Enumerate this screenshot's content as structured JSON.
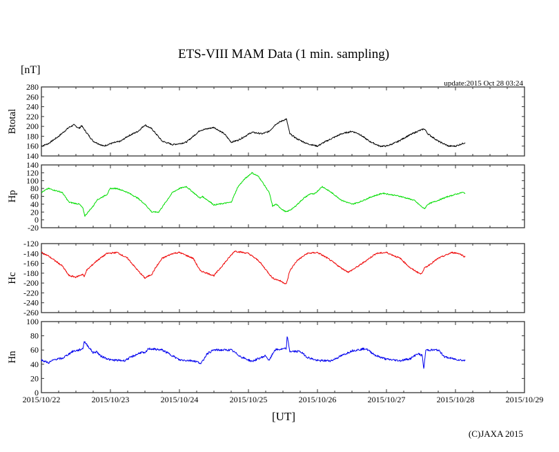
{
  "chart_data": {
    "type": "line",
    "title": "ETS-VIII MAM Data (1 min. sampling)",
    "unit_label": "[nT]",
    "update_text": "update:2015 Oct 28 03:24",
    "xlabel": "[UT]",
    "copyright": "(C)JAXA 2015",
    "x_unit": "days since 2015/10/22 00:00 UT",
    "xlim": [
      0,
      7
    ],
    "x_tick_labels": [
      "2015/10/22",
      "2015/10/23",
      "2015/10/24",
      "2015/10/25",
      "2015/10/26",
      "2015/10/27",
      "2015/10/28",
      "2015/10/29"
    ],
    "panels": [
      {
        "name": "Btotal",
        "ylabel": "Btotal",
        "color": "#000000",
        "ylim": [
          140,
          280
        ],
        "yticks": [
          140,
          160,
          180,
          200,
          220,
          240,
          260,
          280
        ],
        "t": [
          0,
          0.1,
          0.25,
          0.4,
          0.47,
          0.55,
          0.58,
          0.65,
          0.75,
          0.9,
          1.0,
          1.15,
          1.25,
          1.4,
          1.5,
          1.6,
          1.75,
          1.9,
          2.0,
          2.1,
          2.2,
          2.3,
          2.5,
          2.65,
          2.75,
          2.85,
          2.95,
          3.05,
          3.2,
          3.3,
          3.4,
          3.5,
          3.55,
          3.6,
          3.7,
          3.85,
          4.0,
          4.1,
          4.2,
          4.35,
          4.5,
          4.6,
          4.75,
          4.9,
          5.0,
          5.15,
          5.3,
          5.45,
          5.55,
          5.6,
          5.75,
          5.9,
          6.0,
          6.14
        ],
        "v": [
          160,
          165,
          180,
          198,
          203,
          196,
          202,
          188,
          170,
          160,
          165,
          170,
          180,
          190,
          203,
          195,
          170,
          163,
          165,
          168,
          180,
          192,
          198,
          185,
          168,
          172,
          180,
          188,
          185,
          190,
          205,
          212,
          215,
          185,
          175,
          165,
          160,
          168,
          175,
          185,
          190,
          185,
          170,
          160,
          160,
          168,
          180,
          190,
          195,
          185,
          170,
          160,
          160,
          167
        ]
      },
      {
        "name": "Hp",
        "ylabel": "Hp",
        "color": "#00dd00",
        "ylim": [
          -20,
          140
        ],
        "yticks": [
          -20,
          0,
          20,
          40,
          60,
          80,
          100,
          120,
          140
        ],
        "t": [
          0,
          0.1,
          0.3,
          0.4,
          0.55,
          0.6,
          0.63,
          0.7,
          0.75,
          0.8,
          0.95,
          1.0,
          1.1,
          1.25,
          1.4,
          1.5,
          1.6,
          1.7,
          1.8,
          1.9,
          2.0,
          2.1,
          2.2,
          2.3,
          2.33,
          2.45,
          2.5,
          2.75,
          2.85,
          2.95,
          3.05,
          3.15,
          3.3,
          3.35,
          3.4,
          3.5,
          3.55,
          3.65,
          3.8,
          3.9,
          3.95,
          4.07,
          4.2,
          4.35,
          4.5,
          4.6,
          4.8,
          4.95,
          5.2,
          5.4,
          5.5,
          5.55,
          5.6,
          5.75,
          5.9,
          6.1,
          6.14
        ],
        "v": [
          70,
          80,
          70,
          45,
          40,
          30,
          10,
          25,
          35,
          50,
          65,
          80,
          80,
          70,
          55,
          40,
          20,
          20,
          45,
          70,
          80,
          85,
          70,
          55,
          60,
          45,
          38,
          45,
          85,
          105,
          120,
          110,
          70,
          35,
          40,
          25,
          20,
          30,
          55,
          67,
          65,
          85,
          70,
          50,
          40,
          45,
          60,
          68,
          60,
          50,
          35,
          28,
          40,
          50,
          60,
          70,
          68
        ]
      },
      {
        "name": "Hc",
        "ylabel": "Hc",
        "color": "#ee0000",
        "ylim": [
          -260,
          -120
        ],
        "yticks": [
          -260,
          -240,
          -220,
          -200,
          -180,
          -160,
          -140,
          -120
        ],
        "t": [
          0,
          0.1,
          0.3,
          0.4,
          0.5,
          0.6,
          0.62,
          0.65,
          0.8,
          0.95,
          1.1,
          1.25,
          1.4,
          1.5,
          1.6,
          1.65,
          1.75,
          1.9,
          2.0,
          2.2,
          2.3,
          2.4,
          2.5,
          2.65,
          2.8,
          3.0,
          3.15,
          3.35,
          3.45,
          3.55,
          3.6,
          3.7,
          3.85,
          4.0,
          4.15,
          4.35,
          4.45,
          4.6,
          4.85,
          5.0,
          5.2,
          5.35,
          5.5,
          5.55,
          5.75,
          5.95,
          6.05,
          6.14
        ],
        "v": [
          -138,
          -145,
          -165,
          -185,
          -188,
          -182,
          -188,
          -175,
          -155,
          -140,
          -138,
          -150,
          -175,
          -190,
          -182,
          -170,
          -150,
          -140,
          -138,
          -150,
          -175,
          -180,
          -185,
          -160,
          -135,
          -140,
          -155,
          -190,
          -195,
          -202,
          -175,
          -155,
          -140,
          -138,
          -150,
          -170,
          -178,
          -165,
          -140,
          -138,
          -150,
          -170,
          -182,
          -170,
          -150,
          -138,
          -140,
          -147
        ]
      },
      {
        "name": "Hn",
        "ylabel": "Hn",
        "color": "#0000ee",
        "ylim": [
          0,
          100
        ],
        "yticks": [
          0,
          20,
          40,
          60,
          80,
          100
        ],
        "t": [
          0,
          0.1,
          0.2,
          0.3,
          0.45,
          0.55,
          0.6,
          0.62,
          0.68,
          0.75,
          0.8,
          0.85,
          1.0,
          1.2,
          1.3,
          1.45,
          1.5,
          1.55,
          1.75,
          1.9,
          2.0,
          2.2,
          2.3,
          2.31,
          2.4,
          2.5,
          2.75,
          2.9,
          3.05,
          3.15,
          3.25,
          3.3,
          3.38,
          3.55,
          3.56,
          3.6,
          3.75,
          3.85,
          4.0,
          4.2,
          4.35,
          4.5,
          4.7,
          4.85,
          5.0,
          5.2,
          5.35,
          5.45,
          5.52,
          5.54,
          5.57,
          5.75,
          5.85,
          6.0,
          6.14
        ],
        "v": [
          46,
          42,
          47,
          48,
          58,
          60,
          62,
          72,
          65,
          56,
          58,
          52,
          46,
          45,
          50,
          57,
          55,
          62,
          60,
          52,
          46,
          45,
          42,
          40,
          55,
          60,
          60,
          50,
          44,
          48,
          52,
          45,
          60,
          62,
          80,
          58,
          58,
          50,
          45,
          45,
          52,
          59,
          62,
          52,
          47,
          45,
          48,
          55,
          52,
          33,
          60,
          60,
          50,
          47,
          45
        ]
      }
    ]
  }
}
